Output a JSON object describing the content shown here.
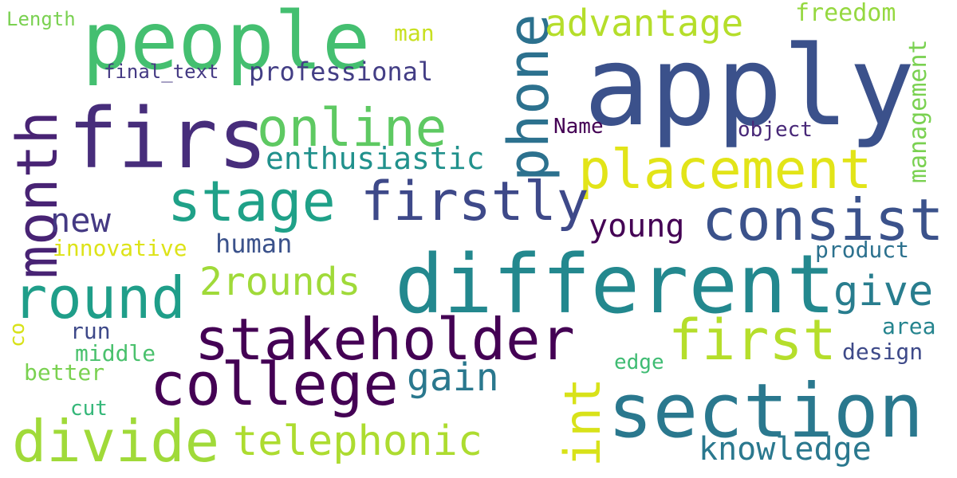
{
  "words": {
    "apply": {
      "text": "apply",
      "color": "#3b518b"
    },
    "people": {
      "text": "people",
      "color": "#44bf70"
    },
    "firs": {
      "text": "firs",
      "color": "#472d7b"
    },
    "month": {
      "text": "month",
      "color": "#482374"
    },
    "phone": {
      "text": "phone",
      "color": "#2c718e"
    },
    "online": {
      "text": "online",
      "color": "#5ec962"
    },
    "placement": {
      "text": "placement",
      "color": "#e2e418"
    },
    "stage": {
      "text": "stage",
      "color": "#1fa188"
    },
    "firstly": {
      "text": "firstly",
      "color": "#3e4989"
    },
    "consist": {
      "text": "consist",
      "color": "#3b528b"
    },
    "different": {
      "text": "different",
      "color": "#23888e"
    },
    "round": {
      "text": "round",
      "color": "#1f9e89"
    },
    "stakeholder": {
      "text": "stakeholder",
      "color": "#440154"
    },
    "college": {
      "text": "college",
      "color": "#440154"
    },
    "first": {
      "text": "first",
      "color": "#b5de2b"
    },
    "section": {
      "text": "section",
      "color": "#2a788e"
    },
    "divide": {
      "text": "divide",
      "color": "#a0da39"
    },
    "telephonic": {
      "text": "telephonic",
      "color": "#addc30"
    },
    "int": {
      "text": "int",
      "color": "#d8e219"
    },
    "advantage": {
      "text": "advantage",
      "color": "#b5de2b"
    },
    "enthusiastic": {
      "text": "enthusiastic",
      "color": "#21918c"
    },
    "new": {
      "text": "new",
      "color": "#443983"
    },
    "two_rounds": {
      "text": "2rounds",
      "color": "#a0da39"
    },
    "gain": {
      "text": "gain",
      "color": "#2a788e"
    },
    "give": {
      "text": "give",
      "color": "#287d8e"
    },
    "young": {
      "text": "young",
      "color": "#440154"
    },
    "knowledge": {
      "text": "knowledge",
      "color": "#2a788e"
    },
    "professional": {
      "text": "professional",
      "color": "#433e85"
    },
    "freedom": {
      "text": "freedom",
      "color": "#95d840"
    },
    "management": {
      "text": "management",
      "color": "#7ad151"
    },
    "human": {
      "text": "human",
      "color": "#3b528b"
    },
    "innovative": {
      "text": "innovative",
      "color": "#dde318"
    },
    "man": {
      "text": "man",
      "color": "#c8e020"
    },
    "length": {
      "text": "Length",
      "color": "#7ad151"
    },
    "final_text": {
      "text": "final_text",
      "color": "#443983"
    },
    "name": {
      "text": "Name",
      "color": "#440154"
    },
    "object": {
      "text": "object",
      "color": "#482878"
    },
    "product": {
      "text": "product",
      "color": "#2c718e"
    },
    "area": {
      "text": "area",
      "color": "#25848e"
    },
    "design": {
      "text": "design",
      "color": "#3e4a89"
    },
    "edge": {
      "text": "edge",
      "color": "#3fbc73"
    },
    "run": {
      "text": "run",
      "color": "#3e4989"
    },
    "middle": {
      "text": "middle",
      "color": "#4ac16d"
    },
    "better": {
      "text": "better",
      "color": "#7ad151"
    },
    "cut": {
      "text": "cut",
      "color": "#35b779"
    },
    "co": {
      "text": "co",
      "color": "#d8e219"
    }
  }
}
